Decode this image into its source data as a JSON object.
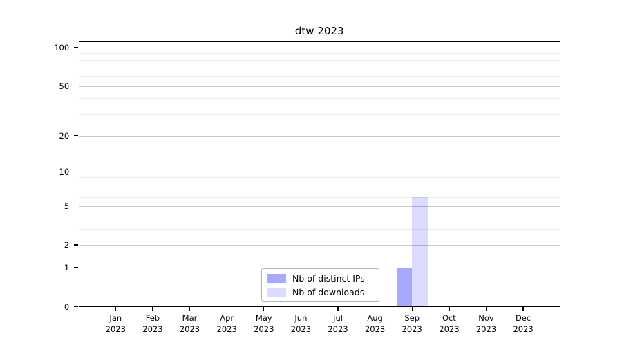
{
  "title": "dtw 2023",
  "chart_data": {
    "type": "bar",
    "title": "dtw 2023",
    "categories": [
      "Jan",
      "Feb",
      "Mar",
      "Apr",
      "May",
      "Jun",
      "Jul",
      "Aug",
      "Sep",
      "Oct",
      "Nov",
      "Dec"
    ],
    "x_tick_year": "2023",
    "series": [
      {
        "name": "Nb of distinct IPs",
        "color_hex": "#0000ff",
        "alpha": 0.34,
        "rendered_color": "#abaaf8",
        "values": [
          0,
          0,
          0,
          0,
          0,
          0,
          0,
          0,
          1,
          0,
          0,
          0
        ]
      },
      {
        "name": "Nb of downloads",
        "color_hex": "#0000ff",
        "alpha": 0.14,
        "rendered_color": "#dcdcfa",
        "values": [
          0,
          0,
          0,
          0,
          0,
          0,
          0,
          0,
          6,
          0,
          0,
          0
        ]
      }
    ],
    "yticks": [
      0,
      1,
      2,
      5,
      10,
      20,
      50,
      100
    ],
    "yscale": "log1p",
    "ylim": [
      0,
      111.6
    ],
    "xlabel": "",
    "ylabel": "",
    "grid": "major+minor horizontal",
    "legend_position": "lower center",
    "background_color": "#ffffff",
    "spine_color": "#000000"
  }
}
